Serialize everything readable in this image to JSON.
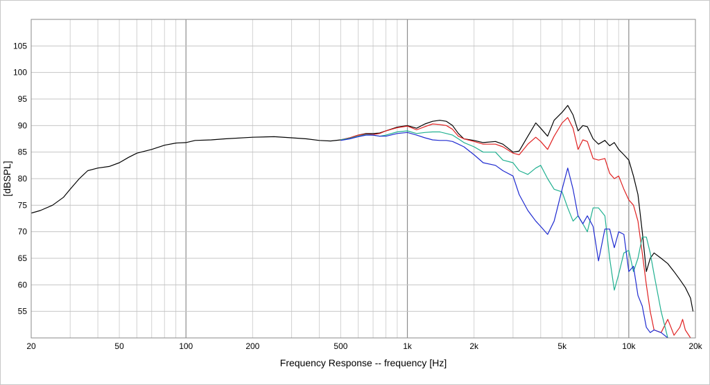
{
  "chart_data": {
    "type": "line",
    "title": "",
    "xlabel": "Frequency Response -- frequency [Hz]",
    "ylabel": "[dBSPL]",
    "x_scale": "log",
    "xlim": [
      20,
      20000
    ],
    "ylim": [
      50,
      110
    ],
    "x_ticks": [
      {
        "value": 20,
        "label": "20"
      },
      {
        "value": 50,
        "label": "50"
      },
      {
        "value": 100,
        "label": "100"
      },
      {
        "value": 200,
        "label": "200"
      },
      {
        "value": 500,
        "label": "500"
      },
      {
        "value": 1000,
        "label": "1k"
      },
      {
        "value": 2000,
        "label": "2k"
      },
      {
        "value": 5000,
        "label": "5k"
      },
      {
        "value": 10000,
        "label": "10k"
      },
      {
        "value": 20000,
        "label": "20k"
      }
    ],
    "y_ticks": [
      55,
      60,
      65,
      70,
      75,
      80,
      85,
      90,
      95,
      100,
      105
    ],
    "grid": true,
    "legend": "none",
    "series": [
      {
        "color": "#000000",
        "points": [
          [
            20,
            73.5
          ],
          [
            22,
            74
          ],
          [
            25,
            75
          ],
          [
            28,
            76.5
          ],
          [
            30,
            78
          ],
          [
            33,
            80
          ],
          [
            36,
            81.5
          ],
          [
            40,
            82
          ],
          [
            45,
            82.3
          ],
          [
            50,
            83
          ],
          [
            55,
            84
          ],
          [
            60,
            84.8
          ],
          [
            70,
            85.5
          ],
          [
            80,
            86.3
          ],
          [
            90,
            86.7
          ],
          [
            100,
            86.8
          ],
          [
            110,
            87.2
          ],
          [
            130,
            87.3
          ],
          [
            150,
            87.5
          ],
          [
            200,
            87.8
          ],
          [
            250,
            87.9
          ],
          [
            300,
            87.7
          ],
          [
            350,
            87.5
          ],
          [
            400,
            87.2
          ],
          [
            450,
            87.1
          ],
          [
            500,
            87.3
          ],
          [
            550,
            87.7
          ],
          [
            600,
            88.2
          ],
          [
            650,
            88.5
          ],
          [
            700,
            88.5
          ],
          [
            750,
            88.6
          ],
          [
            800,
            89
          ],
          [
            900,
            89.7
          ],
          [
            1000,
            90
          ],
          [
            1100,
            89.5
          ],
          [
            1200,
            90.3
          ],
          [
            1300,
            90.8
          ],
          [
            1400,
            91
          ],
          [
            1500,
            90.8
          ],
          [
            1600,
            90
          ],
          [
            1700,
            88.5
          ],
          [
            1800,
            87.5
          ],
          [
            2000,
            87.2
          ],
          [
            2200,
            86.8
          ],
          [
            2500,
            87
          ],
          [
            2700,
            86.5
          ],
          [
            3000,
            85
          ],
          [
            3200,
            85.2
          ],
          [
            3500,
            88
          ],
          [
            3800,
            90.5
          ],
          [
            4000,
            89.5
          ],
          [
            4300,
            88
          ],
          [
            4600,
            91
          ],
          [
            5000,
            92.5
          ],
          [
            5300,
            93.8
          ],
          [
            5600,
            92
          ],
          [
            5900,
            89
          ],
          [
            6200,
            90
          ],
          [
            6500,
            89.8
          ],
          [
            6900,
            87.5
          ],
          [
            7300,
            86.5
          ],
          [
            7800,
            87.2
          ],
          [
            8200,
            86.2
          ],
          [
            8600,
            86.8
          ],
          [
            9000,
            85.5
          ],
          [
            9500,
            84.5
          ],
          [
            10000,
            83.5
          ],
          [
            10500,
            80.5
          ],
          [
            11000,
            77
          ],
          [
            11500,
            70
          ],
          [
            12000,
            62.5
          ],
          [
            12500,
            65
          ],
          [
            13000,
            66
          ],
          [
            14000,
            65
          ],
          [
            15000,
            64
          ],
          [
            16000,
            62.5
          ],
          [
            17000,
            61
          ],
          [
            18000,
            59.5
          ],
          [
            19000,
            57.5
          ],
          [
            19500,
            55
          ]
        ]
      },
      {
        "color": "#e02020",
        "points": [
          [
            500,
            87.3
          ],
          [
            550,
            87.7
          ],
          [
            600,
            88.2
          ],
          [
            650,
            88.4
          ],
          [
            700,
            88.3
          ],
          [
            750,
            88.5
          ],
          [
            800,
            89
          ],
          [
            900,
            89.6
          ],
          [
            1000,
            89.9
          ],
          [
            1100,
            89.2
          ],
          [
            1200,
            89.8
          ],
          [
            1300,
            90.3
          ],
          [
            1400,
            90.2
          ],
          [
            1500,
            90
          ],
          [
            1600,
            89.3
          ],
          [
            1700,
            88
          ],
          [
            1800,
            87.5
          ],
          [
            2000,
            87
          ],
          [
            2200,
            86.5
          ],
          [
            2500,
            86.5
          ],
          [
            2700,
            86
          ],
          [
            3000,
            84.8
          ],
          [
            3200,
            84.5
          ],
          [
            3500,
            86.5
          ],
          [
            3800,
            87.8
          ],
          [
            4000,
            87
          ],
          [
            4300,
            85.5
          ],
          [
            4600,
            88
          ],
          [
            5000,
            90.5
          ],
          [
            5300,
            91.5
          ],
          [
            5600,
            89.5
          ],
          [
            5900,
            85.5
          ],
          [
            6200,
            87.3
          ],
          [
            6500,
            87
          ],
          [
            6900,
            83.8
          ],
          [
            7300,
            83.5
          ],
          [
            7800,
            83.8
          ],
          [
            8200,
            81
          ],
          [
            8600,
            80
          ],
          [
            9000,
            80.5
          ],
          [
            9500,
            78
          ],
          [
            10000,
            76
          ],
          [
            10500,
            75
          ],
          [
            11000,
            72
          ],
          [
            11500,
            66
          ],
          [
            12000,
            60
          ],
          [
            12500,
            55
          ],
          [
            13000,
            51.5
          ],
          [
            14000,
            51
          ],
          [
            15000,
            53.5
          ],
          [
            15500,
            52
          ],
          [
            16000,
            50.5
          ],
          [
            17000,
            52
          ],
          [
            17500,
            53.5
          ],
          [
            18000,
            51.5
          ],
          [
            19000,
            50
          ]
        ]
      },
      {
        "color": "#20b090",
        "points": [
          [
            500,
            87.3
          ],
          [
            550,
            87.6
          ],
          [
            600,
            88
          ],
          [
            650,
            88.3
          ],
          [
            700,
            88.2
          ],
          [
            750,
            88
          ],
          [
            800,
            88.2
          ],
          [
            900,
            88.8
          ],
          [
            1000,
            89
          ],
          [
            1100,
            88.5
          ],
          [
            1200,
            88.7
          ],
          [
            1300,
            88.8
          ],
          [
            1400,
            88.8
          ],
          [
            1500,
            88.5
          ],
          [
            1600,
            88.2
          ],
          [
            1700,
            87.5
          ],
          [
            1800,
            86.8
          ],
          [
            2000,
            86
          ],
          [
            2200,
            85
          ],
          [
            2500,
            85
          ],
          [
            2700,
            83.5
          ],
          [
            3000,
            83
          ],
          [
            3200,
            81.5
          ],
          [
            3500,
            80.8
          ],
          [
            3800,
            82
          ],
          [
            4000,
            82.5
          ],
          [
            4300,
            80
          ],
          [
            4600,
            78
          ],
          [
            5000,
            77.5
          ],
          [
            5300,
            74.5
          ],
          [
            5600,
            72
          ],
          [
            5900,
            73
          ],
          [
            6200,
            71.5
          ],
          [
            6500,
            70
          ],
          [
            6900,
            74.5
          ],
          [
            7300,
            74.5
          ],
          [
            7800,
            73
          ],
          [
            8200,
            65
          ],
          [
            8600,
            59
          ],
          [
            9000,
            62
          ],
          [
            9500,
            66
          ],
          [
            10000,
            66.5
          ],
          [
            10500,
            62.5
          ],
          [
            11000,
            65
          ],
          [
            11500,
            69
          ],
          [
            12000,
            69
          ],
          [
            12500,
            66
          ],
          [
            13000,
            62
          ],
          [
            14000,
            55
          ],
          [
            15000,
            50
          ]
        ]
      },
      {
        "color": "#1e2ad0",
        "points": [
          [
            500,
            87.2
          ],
          [
            550,
            87.5
          ],
          [
            600,
            87.9
          ],
          [
            650,
            88.2
          ],
          [
            700,
            88.2
          ],
          [
            750,
            88
          ],
          [
            800,
            88
          ],
          [
            900,
            88.5
          ],
          [
            1000,
            88.7
          ],
          [
            1100,
            88.2
          ],
          [
            1200,
            87.7
          ],
          [
            1300,
            87.3
          ],
          [
            1400,
            87.2
          ],
          [
            1500,
            87.2
          ],
          [
            1600,
            87
          ],
          [
            1700,
            86.5
          ],
          [
            1800,
            86
          ],
          [
            2000,
            84.5
          ],
          [
            2200,
            83
          ],
          [
            2500,
            82.5
          ],
          [
            2700,
            81.5
          ],
          [
            3000,
            80.5
          ],
          [
            3200,
            77
          ],
          [
            3500,
            74
          ],
          [
            3800,
            72
          ],
          [
            4000,
            71
          ],
          [
            4300,
            69.5
          ],
          [
            4600,
            72
          ],
          [
            5000,
            78
          ],
          [
            5300,
            82
          ],
          [
            5600,
            78
          ],
          [
            5900,
            73
          ],
          [
            6200,
            71.5
          ],
          [
            6500,
            73
          ],
          [
            6900,
            71
          ],
          [
            7300,
            64.5
          ],
          [
            7800,
            70.5
          ],
          [
            8200,
            70.5
          ],
          [
            8600,
            67
          ],
          [
            9000,
            70
          ],
          [
            9500,
            69.5
          ],
          [
            10000,
            62.5
          ],
          [
            10500,
            63.5
          ],
          [
            11000,
            58
          ],
          [
            11500,
            56
          ],
          [
            12000,
            52
          ],
          [
            12500,
            51
          ],
          [
            13000,
            51.5
          ],
          [
            14000,
            51
          ],
          [
            15000,
            50
          ]
        ]
      }
    ]
  }
}
